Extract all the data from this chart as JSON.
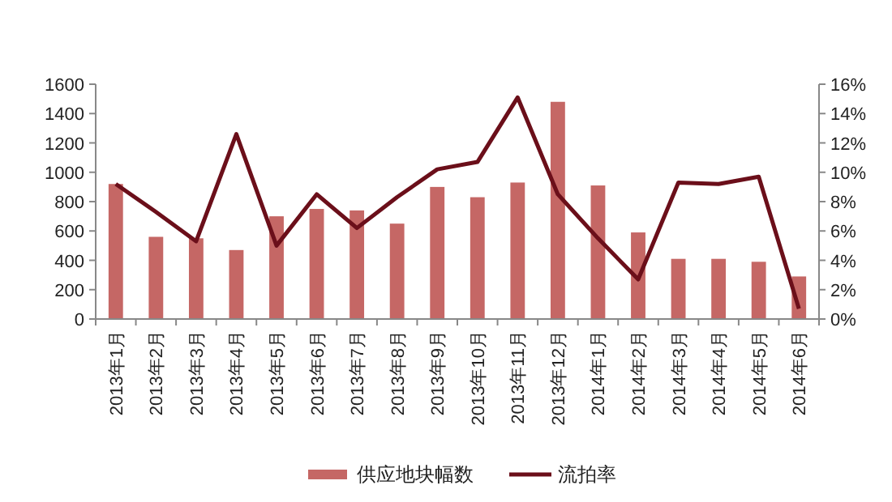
{
  "chart_data": {
    "type": "bar",
    "categories": [
      "2013年1月",
      "2013年2月",
      "2013年3月",
      "2013年4月",
      "2013年5月",
      "2013年6月",
      "2013年7月",
      "2013年8月",
      "2013年9月",
      "2013年10月",
      "2013年11月",
      "2013年12月",
      "2014年1月",
      "2014年2月",
      "2014年3月",
      "2014年4月",
      "2014年5月",
      "2014年6月"
    ],
    "series": [
      {
        "name": "供应地块幅数",
        "color": "#c56765",
        "values": [
          920,
          560,
          550,
          470,
          700,
          750,
          740,
          650,
          900,
          830,
          930,
          1480,
          910,
          590,
          410,
          410,
          390,
          290
        ]
      },
      {
        "name": "流拍率",
        "type": "line",
        "axis": "y2",
        "color": "#6b0f1a",
        "values": [
          9.2,
          7.3,
          5.3,
          12.6,
          5.0,
          8.5,
          6.2,
          8.3,
          10.2,
          10.7,
          15.1,
          8.5,
          5.5,
          2.7,
          9.3,
          9.2,
          9.7,
          0.7
        ]
      }
    ],
    "ylim": [
      0,
      1600
    ],
    "yticks": [
      0,
      200,
      400,
      600,
      800,
      1000,
      1200,
      1400,
      1600
    ],
    "y2lim": [
      0,
      16
    ],
    "y2ticks": [
      {
        "value": 0,
        "label": "0%"
      },
      {
        "value": 2,
        "label": "2%"
      },
      {
        "value": 4,
        "label": "4%"
      },
      {
        "value": 6,
        "label": "6%"
      },
      {
        "value": 8,
        "label": "8%"
      },
      {
        "value": 10,
        "label": "10%"
      },
      {
        "value": 12,
        "label": "12%"
      },
      {
        "value": 14,
        "label": "14%"
      },
      {
        "value": 16,
        "label": "16%"
      }
    ],
    "grid": false,
    "legend": "bottom",
    "marker": "none",
    "line_style": "solid"
  }
}
